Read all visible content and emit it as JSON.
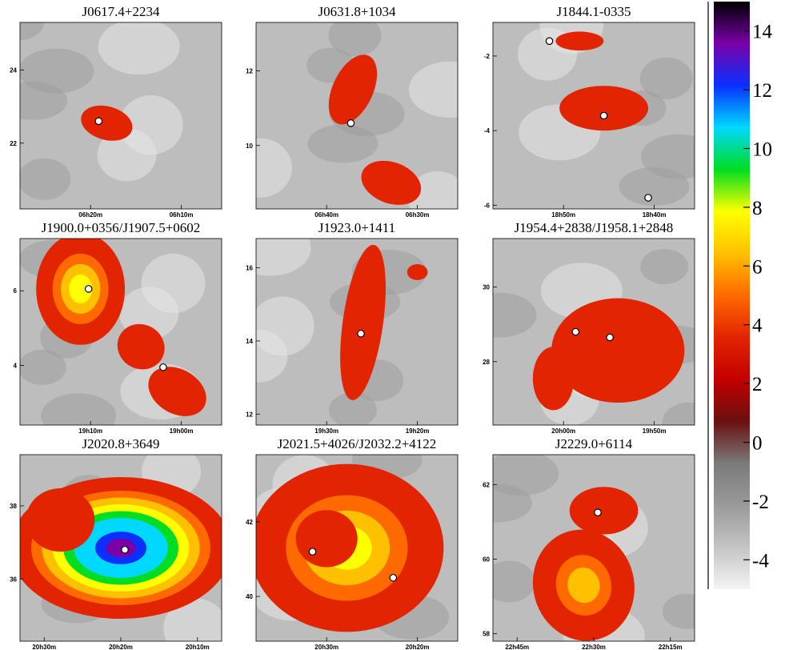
{
  "colors": {
    "background": "#ffffff",
    "source_marker_fill": "#ffffff",
    "source_marker_stroke": "#000000",
    "colormap": [
      "#f4f4f4",
      "#c4c4c4",
      "#9a9a9a",
      "#7a7a7a",
      "#6a1010",
      "#c40000",
      "#e32400",
      "#ff6a00",
      "#ffc000",
      "#ffff00",
      "#00dd22",
      "#00d8ff",
      "#0a30ff",
      "#7a00a8",
      "#000000"
    ]
  },
  "colorbar": {
    "range": [
      -5,
      15
    ],
    "ticks": [
      "14",
      "12",
      "10",
      "8",
      "6",
      "4",
      "2",
      "0",
      "-2",
      "-4"
    ]
  },
  "chart_data": [
    {
      "type": "heatmap",
      "title": "J0617.4+2234",
      "x_ticks": [
        {
          "label": "06h20m"
        },
        {
          "label": "06h10m"
        }
      ],
      "y_ticks": [
        {
          "label": "24",
          "value": 24
        },
        {
          "label": "22",
          "value": 22
        }
      ],
      "ylim": [
        20.2,
        25.3
      ],
      "sources": [
        {
          "x": 0.39,
          "y": 22.6
        }
      ],
      "peak_value": 4.5
    },
    {
      "type": "heatmap",
      "title": "J0631.8+1034",
      "x_ticks": [
        {
          "label": "06h40m"
        },
        {
          "label": "06h30m"
        }
      ],
      "y_ticks": [
        {
          "label": "12",
          "value": 12
        },
        {
          "label": "10",
          "value": 10
        }
      ],
      "ylim": [
        8.3,
        13.3
      ],
      "sources": [
        {
          "x": 0.47,
          "y": 10.6
        }
      ],
      "peak_value": 4.5
    },
    {
      "type": "heatmap",
      "title": "J1844.1-0335",
      "x_ticks": [
        {
          "label": "18h50m"
        },
        {
          "label": "18h40m"
        }
      ],
      "y_ticks": [
        {
          "label": "-2",
          "value": -2
        },
        {
          "label": "-4",
          "value": -4
        },
        {
          "label": "-6",
          "value": -6
        }
      ],
      "ylim": [
        -6.1,
        -1.1
      ],
      "sources": [
        {
          "x": 0.28,
          "y": -1.6
        },
        {
          "x": 0.55,
          "y": -3.6
        },
        {
          "x": 0.77,
          "y": -5.8
        }
      ],
      "peak_value": 4.8
    },
    {
      "type": "heatmap",
      "title": "J1900.0+0356/J1907.5+0602",
      "x_ticks": [
        {
          "label": "19h10m"
        },
        {
          "label": "19h00m"
        }
      ],
      "y_ticks": [
        {
          "label": "6",
          "value": 6
        },
        {
          "label": "4",
          "value": 4
        }
      ],
      "ylim": [
        2.4,
        7.4
      ],
      "sources": [
        {
          "x": 0.34,
          "y": 6.05
        },
        {
          "x": 0.71,
          "y": 3.95
        }
      ],
      "peak_value": 8.5
    },
    {
      "type": "heatmap",
      "title": "J1923.0+1411",
      "x_ticks": [
        {
          "label": "19h30m"
        },
        {
          "label": "19h20m"
        }
      ],
      "y_ticks": [
        {
          "label": "16",
          "value": 16
        },
        {
          "label": "14",
          "value": 14
        },
        {
          "label": "12",
          "value": 12
        }
      ],
      "ylim": [
        11.7,
        16.8
      ],
      "sources": [
        {
          "x": 0.52,
          "y": 14.2
        }
      ],
      "peak_value": 4.3
    },
    {
      "type": "heatmap",
      "title": "J1954.4+2838/J1958.1+2848",
      "x_ticks": [
        {
          "label": "20h00m"
        },
        {
          "label": "19h50m"
        }
      ],
      "y_ticks": [
        {
          "label": "30",
          "value": 30
        },
        {
          "label": "28",
          "value": 28
        }
      ],
      "ylim": [
        26.3,
        31.3
      ],
      "sources": [
        {
          "x": 0.41,
          "y": 28.8
        },
        {
          "x": 0.58,
          "y": 28.65
        }
      ],
      "peak_value": 4.6
    },
    {
      "type": "heatmap",
      "title": "J2020.8+3649",
      "x_ticks": [
        {
          "label": "20h30m"
        },
        {
          "label": "20h20m"
        },
        {
          "label": "20h10m"
        }
      ],
      "y_ticks": [
        {
          "label": "38",
          "value": 38
        },
        {
          "label": "36",
          "value": 36
        }
      ],
      "ylim": [
        34.3,
        39.4
      ],
      "sources": [
        {
          "x": 0.52,
          "y": 36.8
        }
      ],
      "peak_value": 14.5
    },
    {
      "type": "heatmap",
      "title": "J2021.5+4026/J2032.2+4122",
      "x_ticks": [
        {
          "label": "20h30m"
        },
        {
          "label": "20h20m"
        }
      ],
      "y_ticks": [
        {
          "label": "42",
          "value": 42
        },
        {
          "label": "40",
          "value": 40
        }
      ],
      "ylim": [
        38.8,
        43.8
      ],
      "sources": [
        {
          "x": 0.28,
          "y": 41.2
        },
        {
          "x": 0.68,
          "y": 40.5
        }
      ],
      "peak_value": 8.2
    },
    {
      "type": "heatmap",
      "title": "J2229.0+6114",
      "x_ticks": [
        {
          "label": "22h45m"
        },
        {
          "label": "22h30m"
        },
        {
          "label": "22h15m"
        }
      ],
      "y_ticks": [
        {
          "label": "62",
          "value": 62
        },
        {
          "label": "60",
          "value": 60
        },
        {
          "label": "58",
          "value": 58
        }
      ],
      "ylim": [
        57.8,
        62.8
      ],
      "sources": [
        {
          "x": 0.52,
          "y": 61.25
        }
      ],
      "peak_value": 6.8
    }
  ]
}
